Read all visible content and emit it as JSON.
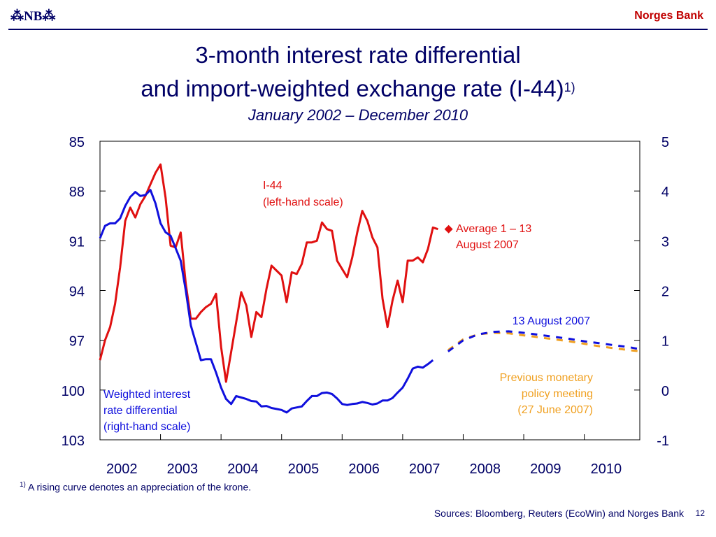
{
  "header": {
    "logo_text": "⁂NB⁂",
    "brand": "Norges Bank"
  },
  "slide": {
    "title_line1": "3-month interest rate differential",
    "title_line2": "and import-weighted exchange rate (I-44)",
    "title_footnote_mark": "1)",
    "subtitle": "January 2002 – December 2010",
    "footnote_mark": "1)",
    "footnote": "A rising curve denotes an appreciation of the krone.",
    "sources": "Sources: Bloomberg, Reuters (EcoWin) and Norges Bank",
    "page_number": "12"
  },
  "colors": {
    "navy": "#000066",
    "i44": "#e01010",
    "differential": "#1010dd",
    "previous": "#f0a020",
    "marker": "#e01010"
  },
  "chart_data": {
    "type": "line",
    "x_axis": {
      "min": 2002.0,
      "max": 2010.917,
      "tick_labels": [
        "2002",
        "2003",
        "2004",
        "2005",
        "2006",
        "2007",
        "2008",
        "2009",
        "2010"
      ],
      "tick_values": [
        2002,
        2003,
        2004,
        2005,
        2006,
        2007,
        2008,
        2009,
        2010
      ]
    },
    "left_axis": {
      "min": 85,
      "max": 103,
      "inverted": true,
      "tick_labels": [
        "85",
        "88",
        "91",
        "94",
        "97",
        "100",
        "103"
      ],
      "tick_values": [
        85,
        88,
        91,
        94,
        97,
        100,
        103
      ]
    },
    "right_axis": {
      "min": -1,
      "max": 5,
      "tick_labels": [
        "5",
        "4",
        "3",
        "2",
        "1",
        "0",
        "-1"
      ],
      "tick_values": [
        5,
        4,
        3,
        2,
        1,
        0,
        -1
      ]
    },
    "grid": false,
    "series": [
      {
        "name": "I-44",
        "axis": "left",
        "style": "solid",
        "color": "#e01010",
        "label": "I-44\n(left-hand scale)",
        "points": [
          [
            2002.0,
            98.2
          ],
          [
            2002.083,
            97.0
          ],
          [
            2002.167,
            96.2
          ],
          [
            2002.25,
            94.8
          ],
          [
            2002.333,
            92.6
          ],
          [
            2002.417,
            89.8
          ],
          [
            2002.5,
            89.0
          ],
          [
            2002.583,
            89.6
          ],
          [
            2002.667,
            88.8
          ],
          [
            2002.75,
            88.3
          ],
          [
            2002.833,
            87.6
          ],
          [
            2002.917,
            86.9
          ],
          [
            2003.0,
            86.4
          ],
          [
            2003.083,
            88.4
          ],
          [
            2003.167,
            91.3
          ],
          [
            2003.25,
            91.4
          ],
          [
            2003.333,
            90.5
          ],
          [
            2003.417,
            93.6
          ],
          [
            2003.5,
            95.7
          ],
          [
            2003.583,
            95.7
          ],
          [
            2003.667,
            95.3
          ],
          [
            2003.75,
            95.0
          ],
          [
            2003.833,
            94.8
          ],
          [
            2003.917,
            94.2
          ],
          [
            2004.0,
            97.4
          ],
          [
            2004.083,
            99.5
          ],
          [
            2004.167,
            97.7
          ],
          [
            2004.25,
            95.9
          ],
          [
            2004.333,
            94.1
          ],
          [
            2004.417,
            94.9
          ],
          [
            2004.5,
            96.8
          ],
          [
            2004.583,
            95.3
          ],
          [
            2004.667,
            95.6
          ],
          [
            2004.75,
            93.9
          ],
          [
            2004.833,
            92.5
          ],
          [
            2004.917,
            92.8
          ],
          [
            2005.0,
            93.1
          ],
          [
            2005.083,
            94.7
          ],
          [
            2005.167,
            92.9
          ],
          [
            2005.25,
            93.0
          ],
          [
            2005.333,
            92.4
          ],
          [
            2005.417,
            91.1
          ],
          [
            2005.5,
            91.1
          ],
          [
            2005.583,
            91.0
          ],
          [
            2005.667,
            89.9
          ],
          [
            2005.75,
            90.3
          ],
          [
            2005.833,
            90.4
          ],
          [
            2005.917,
            92.2
          ],
          [
            2006.0,
            92.7
          ],
          [
            2006.083,
            93.2
          ],
          [
            2006.167,
            92.0
          ],
          [
            2006.25,
            90.5
          ],
          [
            2006.333,
            89.2
          ],
          [
            2006.417,
            89.8
          ],
          [
            2006.5,
            90.8
          ],
          [
            2006.583,
            91.4
          ],
          [
            2006.667,
            94.5
          ],
          [
            2006.75,
            96.2
          ],
          [
            2006.833,
            94.6
          ],
          [
            2006.917,
            93.4
          ],
          [
            2007.0,
            94.7
          ],
          [
            2007.083,
            92.2
          ],
          [
            2007.167,
            92.2
          ],
          [
            2007.25,
            92.0
          ],
          [
            2007.333,
            92.3
          ],
          [
            2007.417,
            91.5
          ],
          [
            2007.5,
            90.2
          ],
          [
            2007.583,
            90.3
          ]
        ]
      },
      {
        "name": "Weighted interest rate differential",
        "axis": "right",
        "style": "solid",
        "color": "#1010dd",
        "label": "Weighted interest\nrate differential\n(right-hand scale)",
        "points": [
          [
            2002.0,
            3.05
          ],
          [
            2002.083,
            3.3
          ],
          [
            2002.167,
            3.35
          ],
          [
            2002.25,
            3.35
          ],
          [
            2002.333,
            3.45
          ],
          [
            2002.417,
            3.7
          ],
          [
            2002.5,
            3.88
          ],
          [
            2002.583,
            3.98
          ],
          [
            2002.667,
            3.9
          ],
          [
            2002.75,
            3.92
          ],
          [
            2002.833,
            4.02
          ],
          [
            2002.917,
            3.75
          ],
          [
            2003.0,
            3.35
          ],
          [
            2003.083,
            3.17
          ],
          [
            2003.167,
            3.1
          ],
          [
            2003.25,
            2.85
          ],
          [
            2003.333,
            2.6
          ],
          [
            2003.417,
            2.0
          ],
          [
            2003.5,
            1.3
          ],
          [
            2003.583,
            0.95
          ],
          [
            2003.667,
            0.6
          ],
          [
            2003.75,
            0.62
          ],
          [
            2003.833,
            0.62
          ],
          [
            2003.917,
            0.35
          ],
          [
            2004.0,
            0.05
          ],
          [
            2004.083,
            -0.18
          ],
          [
            2004.167,
            -0.28
          ],
          [
            2004.25,
            -0.12
          ],
          [
            2004.333,
            -0.15
          ],
          [
            2004.417,
            -0.18
          ],
          [
            2004.5,
            -0.22
          ],
          [
            2004.583,
            -0.23
          ],
          [
            2004.667,
            -0.33
          ],
          [
            2004.75,
            -0.32
          ],
          [
            2004.833,
            -0.36
          ],
          [
            2004.917,
            -0.38
          ],
          [
            2005.0,
            -0.4
          ],
          [
            2005.083,
            -0.45
          ],
          [
            2005.167,
            -0.37
          ],
          [
            2005.25,
            -0.35
          ],
          [
            2005.333,
            -0.33
          ],
          [
            2005.417,
            -0.22
          ],
          [
            2005.5,
            -0.12
          ],
          [
            2005.583,
            -0.12
          ],
          [
            2005.667,
            -0.06
          ],
          [
            2005.75,
            -0.05
          ],
          [
            2005.833,
            -0.08
          ],
          [
            2005.917,
            -0.17
          ],
          [
            2006.0,
            -0.28
          ],
          [
            2006.083,
            -0.3
          ],
          [
            2006.167,
            -0.28
          ],
          [
            2006.25,
            -0.27
          ],
          [
            2006.333,
            -0.24
          ],
          [
            2006.417,
            -0.26
          ],
          [
            2006.5,
            -0.29
          ],
          [
            2006.583,
            -0.27
          ],
          [
            2006.667,
            -0.21
          ],
          [
            2006.75,
            -0.21
          ],
          [
            2006.833,
            -0.16
          ],
          [
            2006.917,
            -0.05
          ],
          [
            2007.0,
            0.05
          ],
          [
            2007.083,
            0.23
          ],
          [
            2007.167,
            0.43
          ],
          [
            2007.25,
            0.47
          ],
          [
            2007.333,
            0.45
          ],
          [
            2007.417,
            0.52
          ],
          [
            2007.5,
            0.6
          ]
        ]
      },
      {
        "name": "Previous monetary policy meeting (27 June 2007)",
        "axis": "right",
        "style": "dashed",
        "color": "#f0a020",
        "label": "Previous monetary\npolicy meeting\n(27 June 2007)",
        "points": [
          [
            2007.75,
            0.8
          ],
          [
            2008.0,
            1.02
          ],
          [
            2008.25,
            1.12
          ],
          [
            2008.5,
            1.15
          ],
          [
            2008.75,
            1.14
          ],
          [
            2009.0,
            1.1
          ],
          [
            2009.25,
            1.06
          ],
          [
            2009.5,
            1.02
          ],
          [
            2009.75,
            0.98
          ],
          [
            2010.0,
            0.93
          ],
          [
            2010.25,
            0.88
          ],
          [
            2010.5,
            0.84
          ],
          [
            2010.75,
            0.8
          ],
          [
            2010.917,
            0.78
          ]
        ]
      },
      {
        "name": "13 August 2007",
        "axis": "right",
        "style": "dashed",
        "color": "#1010dd",
        "label": "13 August 2007",
        "points": [
          [
            2007.667,
            0.7
          ],
          [
            2008.0,
            1.0
          ],
          [
            2008.25,
            1.12
          ],
          [
            2008.5,
            1.17
          ],
          [
            2008.75,
            1.18
          ],
          [
            2009.0,
            1.15
          ],
          [
            2009.25,
            1.11
          ],
          [
            2009.5,
            1.07
          ],
          [
            2009.75,
            1.03
          ],
          [
            2010.0,
            0.98
          ],
          [
            2010.25,
            0.94
          ],
          [
            2010.5,
            0.9
          ],
          [
            2010.75,
            0.86
          ],
          [
            2010.917,
            0.82
          ]
        ]
      }
    ],
    "annotations": [
      {
        "name": "Average 1 – 13 August 2007",
        "axis": "left",
        "marker": "diamond",
        "color": "#e01010",
        "x": 2007.667,
        "y": 90.3,
        "label": "Average 1 – 13\nAugust 2007"
      }
    ]
  }
}
